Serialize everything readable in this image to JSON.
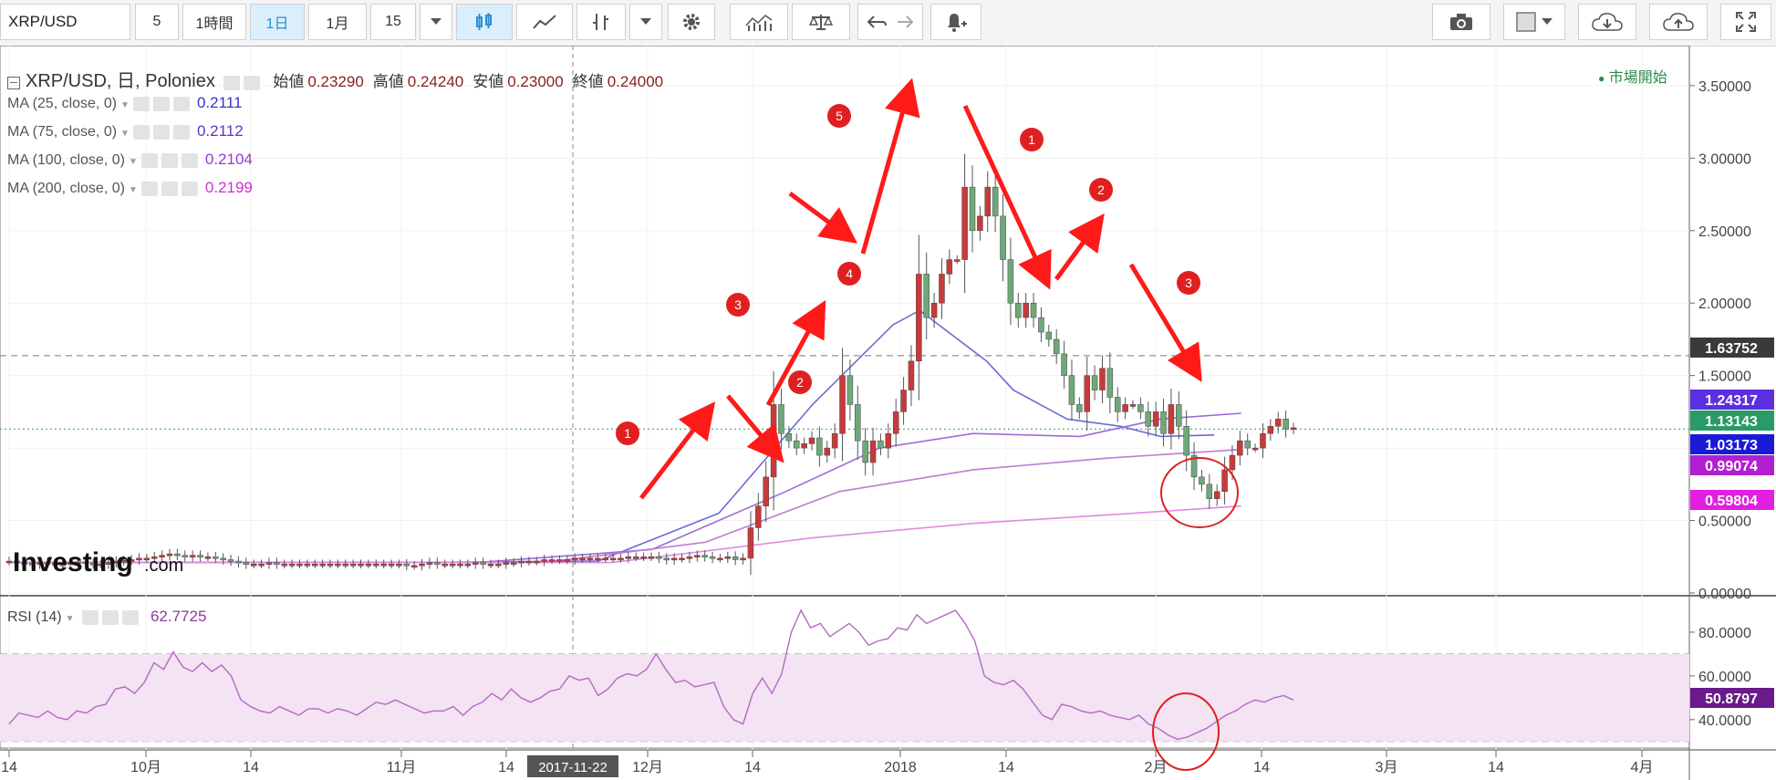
{
  "toolbar": {
    "symbol": "XRP/USD",
    "buttons": [
      {
        "label": "5",
        "name": "interval-5-button",
        "x": 148,
        "w": 48
      },
      {
        "label": "1時間",
        "name": "interval-1h-button",
        "x": 200,
        "w": 70
      },
      {
        "label": "1日",
        "name": "interval-1d-button",
        "x": 274,
        "w": 60,
        "selected": true
      },
      {
        "label": "1月",
        "name": "interval-1m-button",
        "x": 338,
        "w": 64
      },
      {
        "label": "15",
        "name": "interval-15-button",
        "x": 406,
        "w": 50
      }
    ]
  },
  "legend": {
    "title": "XRP/USD, 日, Poloniex",
    "ohlc": [
      {
        "label": "始値",
        "value": "0.23290"
      },
      {
        "label": "高値",
        "value": "0.24240"
      },
      {
        "label": "安値",
        "value": "0.23000"
      },
      {
        "label": "終値",
        "value": "0.24000"
      }
    ],
    "market_status": "市場開始",
    "studies": [
      {
        "label": "MA (25, close, 0)",
        "value": "0.2111",
        "color": "#2f36d1"
      },
      {
        "label": "MA (75, close, 0)",
        "value": "0.2112",
        "color": "#6233c9"
      },
      {
        "label": "MA (100, close, 0)",
        "value": "0.2104",
        "color": "#9b39cc"
      },
      {
        "label": "MA (200, close, 0)",
        "value": "0.2199",
        "color": "#cc33cc"
      }
    ],
    "rsi": {
      "label": "RSI (14)",
      "value": "62.7725",
      "color": "#8b3a9a"
    }
  },
  "watermark": {
    "main": "Investing",
    "suffix": ".com"
  },
  "chart_data": {
    "type": "candlestick",
    "price_axis": {
      "ylim": [
        0,
        3.6
      ],
      "ticks": [
        "0.00000",
        "0.50000",
        "1.00000",
        "1.50000",
        "2.00000",
        "2.50000",
        "3.00000",
        "3.50000"
      ]
    },
    "rsi_axis": {
      "ylim": [
        27,
        95
      ],
      "ticks": [
        "40.0000",
        "60.0000",
        "80.0000"
      ],
      "bands": [
        30,
        70
      ]
    },
    "x_axis": {
      "ticks": [
        "14",
        "10月",
        "14",
        "11月",
        "14",
        "12月",
        "14",
        "2018",
        "14",
        "2月",
        "14",
        "3月",
        "14",
        "4月"
      ],
      "crosshair_date": "2017-11-22"
    },
    "price_labels": [
      {
        "value": "1.63752",
        "color": "#3a3a3a"
      },
      {
        "value": "1.24317",
        "color": "#5b2fe0"
      },
      {
        "value": "1.13143",
        "color": "#2a9a66"
      },
      {
        "value": "1.03173",
        "color": "#1a1ad6"
      },
      {
        "value": "0.99074",
        "color": "#b21fd0"
      },
      {
        "value": "0.59804",
        "color": "#e01fe0"
      }
    ],
    "rsi_label": {
      "value": "50.8797",
      "color": "#6a1a8a"
    },
    "candles_y": [
      0.22,
      0.21,
      0.205,
      0.2,
      0.21,
      0.205,
      0.2,
      0.2,
      0.21,
      0.215,
      0.205,
      0.2,
      0.2,
      0.21,
      0.22,
      0.225,
      0.23,
      0.24,
      0.24,
      0.25,
      0.26,
      0.27,
      0.26,
      0.25,
      0.26,
      0.25,
      0.25,
      0.24,
      0.23,
      0.22,
      0.21,
      0.2,
      0.2,
      0.2,
      0.21,
      0.2,
      0.2,
      0.2,
      0.2,
      0.2,
      0.2,
      0.2,
      0.2,
      0.2,
      0.2,
      0.2,
      0.2,
      0.2,
      0.2,
      0.2,
      0.2,
      0.2,
      0.19,
      0.19,
      0.2,
      0.21,
      0.2,
      0.2,
      0.2,
      0.2,
      0.2,
      0.21,
      0.2,
      0.2,
      0.2,
      0.21,
      0.21,
      0.22,
      0.22,
      0.22,
      0.23,
      0.23,
      0.23,
      0.23,
      0.24,
      0.24,
      0.24,
      0.24,
      0.24,
      0.24,
      0.24,
      0.25,
      0.25,
      0.25,
      0.25,
      0.24,
      0.23,
      0.24,
      0.24,
      0.25,
      0.26,
      0.25,
      0.24,
      0.24,
      0.25,
      0.23,
      0.24,
      0.45,
      0.6,
      0.8,
      1.3,
      1.1,
      1.05,
      1.0,
      1.03,
      1.07,
      0.95,
      1.0,
      1.1,
      1.5,
      1.3,
      1.05,
      0.9,
      1.05,
      1.0,
      1.1,
      1.25,
      1.4,
      1.6,
      2.2,
      1.9,
      2.0,
      2.2,
      2.3,
      2.3,
      2.8,
      2.5,
      2.6,
      2.8,
      2.6,
      2.3,
      2.0,
      1.9,
      2.0,
      1.9,
      1.8,
      1.75,
      1.65,
      1.5,
      1.3,
      1.25,
      1.5,
      1.4,
      1.55,
      1.35,
      1.25,
      1.3,
      1.3,
      1.25,
      1.15,
      1.25,
      1.1,
      1.3,
      1.15,
      0.95,
      0.8,
      0.75,
      0.65,
      0.7,
      0.85,
      0.95,
      1.05,
      1.0,
      1.0,
      1.1,
      1.15,
      1.2,
      1.13,
      1.14
    ],
    "rsi": [
      38,
      43,
      42,
      41,
      44,
      41,
      40,
      44,
      43,
      46,
      47,
      54,
      55,
      52,
      57,
      66,
      63,
      71,
      64,
      62,
      66,
      62,
      65,
      60,
      49,
      46,
      44,
      43,
      46,
      44,
      42,
      45,
      45,
      43,
      45,
      44,
      42,
      45,
      48,
      47,
      49,
      47,
      45,
      43,
      44,
      44,
      46,
      42,
      46,
      48,
      52,
      49,
      54,
      50,
      48,
      50,
      53,
      54,
      60,
      58,
      59,
      51,
      54,
      59,
      61,
      60,
      63,
      70,
      63,
      57,
      58,
      55,
      56,
      57,
      46,
      40,
      38,
      52,
      59,
      52,
      61,
      80,
      90,
      82,
      84,
      78,
      81,
      84,
      80,
      74,
      76,
      77,
      82,
      81,
      88,
      84,
      86,
      88,
      90,
      84,
      76,
      60,
      57,
      56,
      58,
      54,
      48,
      42,
      40,
      47,
      46,
      44,
      43,
      44,
      42,
      41,
      40,
      42,
      38,
      36,
      33,
      31,
      32,
      34,
      36,
      39,
      42,
      44,
      47,
      49,
      48,
      50,
      51,
      49
    ],
    "ma": [
      {
        "label": "MA (25, close, 0)",
        "color": "#6b6bd6",
        "points": [
          [
            0.0,
            0.21
          ],
          [
            0.3,
            0.21
          ],
          [
            0.44,
            0.22
          ],
          [
            0.53,
            0.55
          ],
          [
            0.6,
            1.3
          ],
          [
            0.66,
            1.85
          ],
          [
            0.68,
            1.95
          ],
          [
            0.73,
            1.6
          ],
          [
            0.75,
            1.4
          ],
          [
            0.79,
            1.2
          ],
          [
            0.83,
            1.15
          ],
          [
            0.86,
            1.08
          ],
          [
            0.9,
            1.09
          ]
        ]
      },
      {
        "label": "MA (75, close, 0)",
        "color": "#9b6bd6",
        "points": [
          [
            0.0,
            0.21
          ],
          [
            0.35,
            0.21
          ],
          [
            0.48,
            0.3
          ],
          [
            0.58,
            0.7
          ],
          [
            0.65,
            1.0
          ],
          [
            0.72,
            1.1
          ],
          [
            0.8,
            1.08
          ],
          [
            0.86,
            1.2
          ],
          [
            0.92,
            1.24
          ]
        ]
      },
      {
        "label": "MA (100, close, 0)",
        "color": "#c07ad6",
        "points": [
          [
            0.0,
            0.21
          ],
          [
            0.4,
            0.21
          ],
          [
            0.52,
            0.35
          ],
          [
            0.62,
            0.7
          ],
          [
            0.72,
            0.85
          ],
          [
            0.82,
            0.93
          ],
          [
            0.92,
            0.99
          ]
        ]
      },
      {
        "label": "MA (200, close, 0)",
        "color": "#e08ae0",
        "points": [
          [
            0.0,
            0.21
          ],
          [
            0.45,
            0.21
          ],
          [
            0.6,
            0.38
          ],
          [
            0.72,
            0.48
          ],
          [
            0.84,
            0.55
          ],
          [
            0.92,
            0.6
          ]
        ]
      }
    ],
    "annotations": [
      "1",
      "2",
      "3",
      "4",
      "5",
      "1",
      "2",
      "3"
    ]
  }
}
